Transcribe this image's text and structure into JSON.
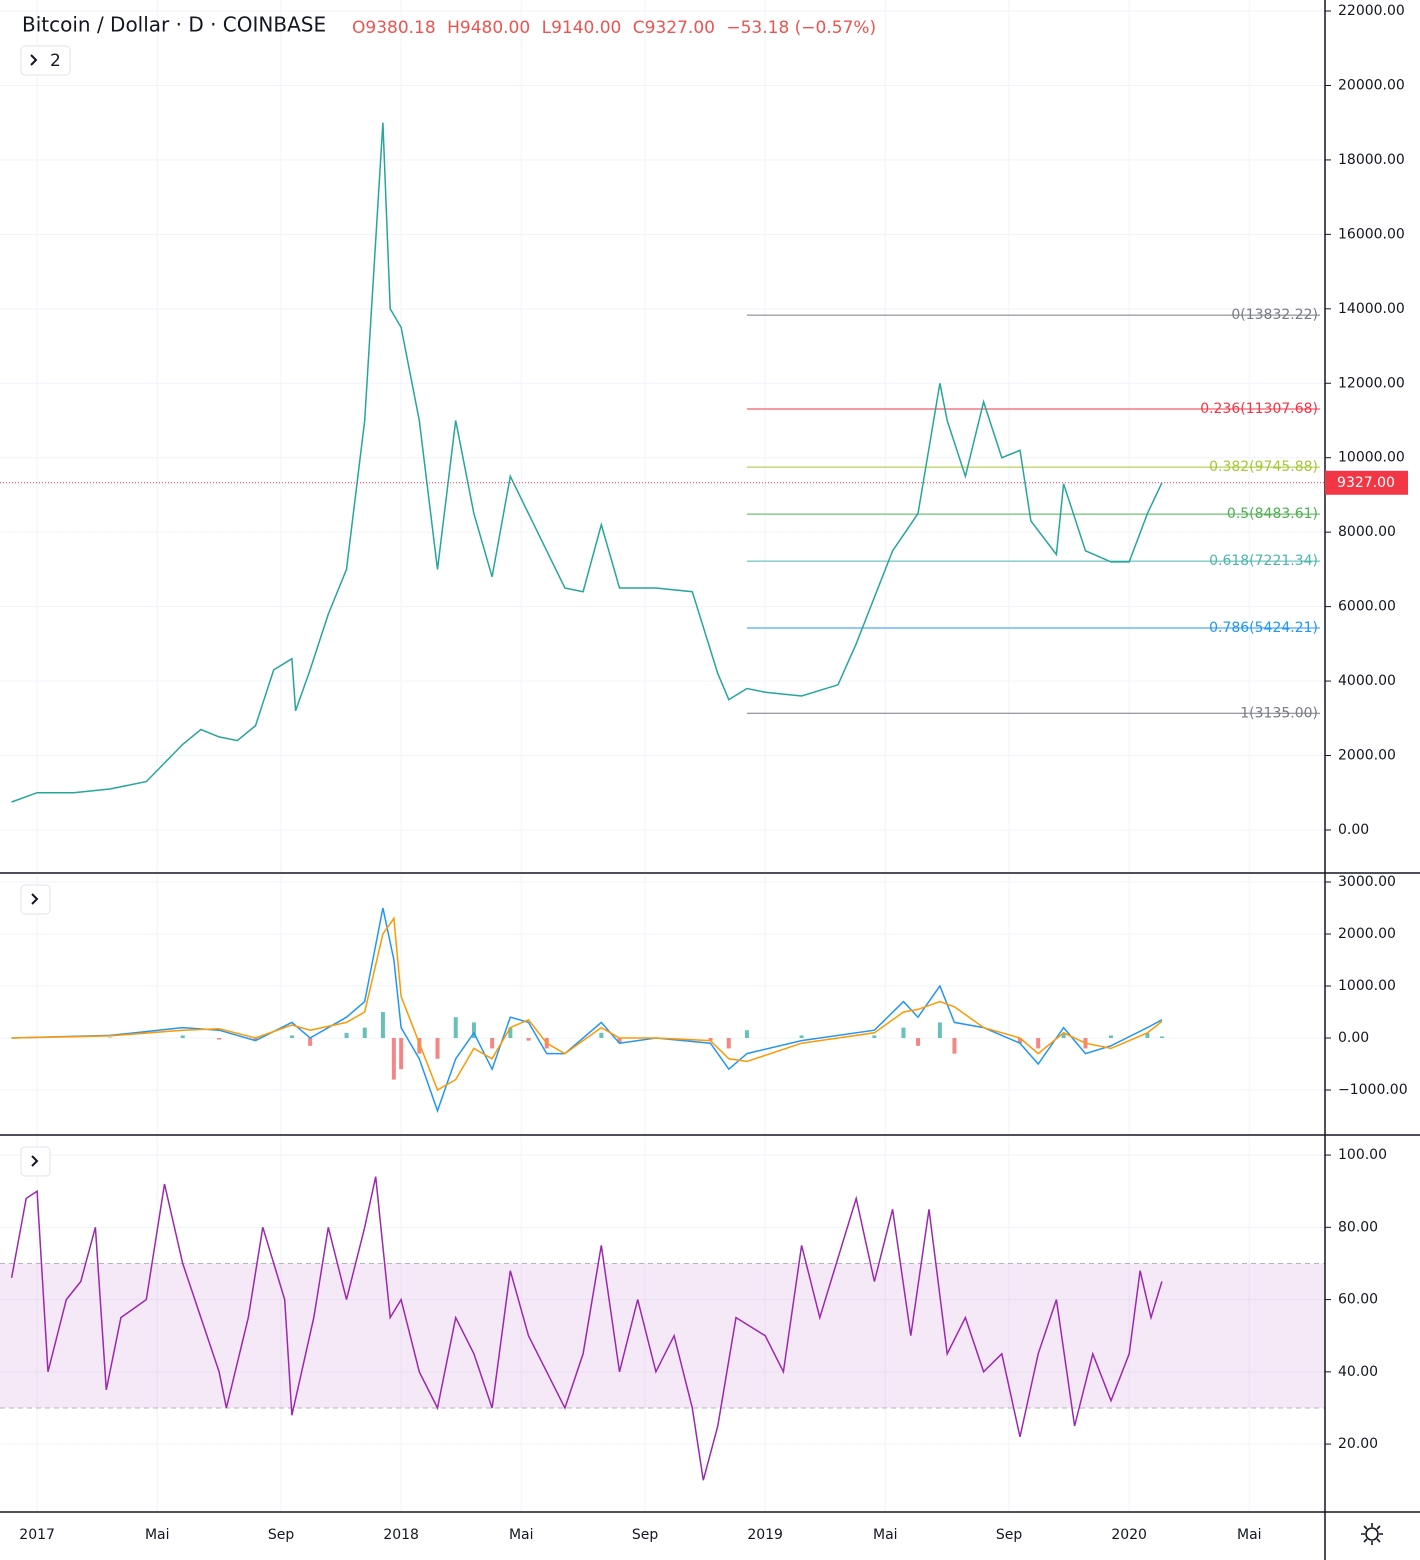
{
  "header": {
    "symbol": "Bitcoin / Dollar · D · COINBASE",
    "open": "O9380.18",
    "high": "H9480.00",
    "low": "L9140.00",
    "close": "C9327.00",
    "change": "−53.18 (−0.57%)"
  },
  "ui": {
    "indicator_count": "2"
  },
  "chart_data": [
    {
      "type": "line",
      "xlim": [
        2016.898,
        2020.538
      ],
      "ylim": [
        -1156,
        22296
      ],
      "yticks": [
        {
          "value": 0,
          "label": "0.00"
        },
        {
          "value": 2000,
          "label": "2000.00"
        },
        {
          "value": 4000,
          "label": "4000.00"
        },
        {
          "value": 6000,
          "label": "6000.00"
        },
        {
          "value": 8000,
          "label": "8000.00"
        },
        {
          "value": 10000,
          "label": "10000.00"
        },
        {
          "value": 12000,
          "label": "12000.00"
        },
        {
          "value": 14000,
          "label": "14000.00"
        },
        {
          "value": 16000,
          "label": "16000.00"
        },
        {
          "value": 18000,
          "label": "18000.00"
        },
        {
          "value": 20000,
          "label": "20000.00"
        },
        {
          "value": 22000,
          "label": "22000.00"
        }
      ],
      "x": [
        2016.93,
        2017.0,
        2017.1,
        2017.2,
        2017.3,
        2017.4,
        2017.45,
        2017.5,
        2017.55,
        2017.6,
        2017.65,
        2017.7,
        2017.71,
        2017.75,
        2017.8,
        2017.85,
        2017.9,
        2017.95,
        2017.97,
        2018.0,
        2018.05,
        2018.1,
        2018.15,
        2018.2,
        2018.25,
        2018.3,
        2018.35,
        2018.4,
        2018.45,
        2018.5,
        2018.55,
        2018.6,
        2018.7,
        2018.8,
        2018.87,
        2018.9,
        2018.95,
        2019.0,
        2019.1,
        2019.2,
        2019.25,
        2019.35,
        2019.42,
        2019.48,
        2019.5,
        2019.55,
        2019.6,
        2019.65,
        2019.7,
        2019.73,
        2019.8,
        2019.82,
        2019.88,
        2019.95,
        2020.0,
        2020.05,
        2020.09
      ],
      "series": [
        {
          "color": "#26a69a",
          "values": [
            750,
            1000,
            1000,
            1100,
            1300,
            2300,
            2700,
            2500,
            2400,
            2800,
            4300,
            4600,
            3200,
            4300,
            5800,
            7000,
            11000,
            19000,
            14000,
            13500,
            11000,
            7000,
            11000,
            8500,
            6800,
            9500,
            8500,
            7500,
            6500,
            6400,
            8200,
            6500,
            6500,
            6400,
            4200,
            3500,
            3800,
            3700,
            3600,
            3900,
            5000,
            7500,
            8500,
            12000,
            11000,
            9500,
            11500,
            10000,
            10200,
            8300,
            7400,
            9300,
            7500,
            7200,
            7200,
            8500,
            9327
          ]
        }
      ],
      "last_price": {
        "value": 9327,
        "label": "9327.00",
        "color": "#f23645"
      },
      "fib": {
        "x_start": 2018.95,
        "values": [
          13832.22,
          11307.68,
          9745.88,
          8483.61,
          7221.34,
          5424.21,
          3135.0
        ],
        "labels": [
          "0(13832.22)",
          "0.236(11307.68)",
          "0.382(9745.88)",
          "0.5(8483.61)",
          "0.618(7221.34)",
          "0.786(5424.21)",
          "1(3135.00)"
        ],
        "colors": [
          "#787b86",
          "#f23645",
          "#a5c837",
          "#4caf50",
          "#4db6ac",
          "#2196f3",
          "#787b86"
        ]
      }
    },
    {
      "type": "line",
      "xlim": [
        2016.898,
        2020.538
      ],
      "ylim": [
        -1865,
        3135
      ],
      "yticks": [
        {
          "value": -1000,
          "label": "−1000.00"
        },
        {
          "value": 0,
          "label": "0.00"
        },
        {
          "value": 1000,
          "label": "1000.00"
        },
        {
          "value": 2000,
          "label": "2000.00"
        },
        {
          "value": 3000,
          "label": "3000.00"
        }
      ],
      "x": [
        2016.93,
        2017.2,
        2017.4,
        2017.5,
        2017.6,
        2017.7,
        2017.75,
        2017.85,
        2017.9,
        2017.95,
        2017.98,
        2018.0,
        2018.05,
        2018.1,
        2018.15,
        2018.2,
        2018.25,
        2018.3,
        2018.35,
        2018.4,
        2018.45,
        2018.55,
        2018.6,
        2018.7,
        2018.85,
        2018.9,
        2018.95,
        2019.1,
        2019.3,
        2019.38,
        2019.42,
        2019.48,
        2019.52,
        2019.6,
        2019.7,
        2019.75,
        2019.82,
        2019.88,
        2019.95,
        2020.05,
        2020.09
      ],
      "series": [
        {
          "color": "#2196f3",
          "values": [
            0,
            50,
            200,
            150,
            -50,
            300,
            0,
            400,
            700,
            2500,
            1500,
            200,
            -400,
            -1400,
            -400,
            100,
            -600,
            400,
            300,
            -300,
            -300,
            300,
            -100,
            0,
            -100,
            -600,
            -300,
            -50,
            150,
            700,
            400,
            1000,
            300,
            200,
            -100,
            -500,
            200,
            -300,
            -150,
            200,
            350
          ]
        },
        {
          "color": "#ff9800",
          "values": [
            0,
            40,
            150,
            180,
            0,
            250,
            150,
            300,
            500,
            2000,
            2300,
            800,
            -100,
            -1000,
            -800,
            -200,
            -400,
            200,
            350,
            -100,
            -300,
            200,
            0,
            0,
            -50,
            -400,
            -450,
            -100,
            100,
            500,
            550,
            700,
            600,
            200,
            0,
            -300,
            100,
            -100,
            -200,
            100,
            320
          ]
        }
      ],
      "histogram": {
        "color_up": "#26a69a",
        "color_down": "#ef5350",
        "values": [
          0,
          10,
          50,
          -30,
          -50,
          50,
          -150,
          100,
          200,
          500,
          -800,
          -600,
          -300,
          -400,
          400,
          300,
          -200,
          200,
          -50,
          -200,
          0,
          100,
          -100,
          0,
          -50,
          -200,
          150,
          50,
          50,
          200,
          -150,
          300,
          -300,
          0,
          -100,
          -200,
          100,
          -200,
          50,
          100,
          30
        ]
      }
    },
    {
      "type": "line",
      "xlim": [
        2016.898,
        2020.538
      ],
      "ylim": [
        1.2,
        105
      ],
      "yticks": [
        {
          "value": 20,
          "label": "20.00"
        },
        {
          "value": 40,
          "label": "40.00"
        },
        {
          "value": 60,
          "label": "60.00"
        },
        {
          "value": 80,
          "label": "80.00"
        },
        {
          "value": 100,
          "label": "100.00"
        }
      ],
      "xticks": [
        {
          "value": 2017,
          "label": "2017"
        },
        {
          "value": 2017.33,
          "label": "Mai"
        },
        {
          "value": 2017.67,
          "label": "Sep"
        },
        {
          "value": 2018,
          "label": "2018"
        },
        {
          "value": 2018.33,
          "label": "Mai"
        },
        {
          "value": 2018.67,
          "label": "Sep"
        },
        {
          "value": 2019,
          "label": "2019"
        },
        {
          "value": 2019.33,
          "label": "Mai"
        },
        {
          "value": 2019.67,
          "label": "Sep"
        },
        {
          "value": 2020,
          "label": "2020"
        },
        {
          "value": 2020.33,
          "label": "Mai"
        }
      ],
      "bands": {
        "upper": 70,
        "lower": 30,
        "color": "#9c27b0"
      },
      "x": [
        2016.93,
        2016.97,
        2017.0,
        2017.03,
        2017.08,
        2017.12,
        2017.16,
        2017.19,
        2017.23,
        2017.3,
        2017.35,
        2017.4,
        2017.45,
        2017.5,
        2017.52,
        2017.58,
        2017.62,
        2017.68,
        2017.7,
        2017.76,
        2017.8,
        2017.85,
        2017.9,
        2017.93,
        2017.97,
        2018.0,
        2018.05,
        2018.1,
        2018.15,
        2018.2,
        2018.25,
        2018.3,
        2018.35,
        2018.4,
        2018.45,
        2018.5,
        2018.55,
        2018.6,
        2018.65,
        2018.7,
        2018.75,
        2018.8,
        2018.83,
        2018.87,
        2018.92,
        2019.0,
        2019.05,
        2019.1,
        2019.15,
        2019.25,
        2019.3,
        2019.35,
        2019.4,
        2019.45,
        2019.5,
        2019.55,
        2019.6,
        2019.65,
        2019.7,
        2019.75,
        2019.8,
        2019.85,
        2019.9,
        2019.95,
        2020.0,
        2020.03,
        2020.06,
        2020.09
      ],
      "series": [
        {
          "color": "#9c27b0",
          "values": [
            66,
            88,
            90,
            40,
            60,
            65,
            80,
            35,
            55,
            60,
            92,
            70,
            55,
            40,
            30,
            55,
            80,
            60,
            28,
            55,
            80,
            60,
            80,
            94,
            55,
            60,
            40,
            30,
            55,
            45,
            30,
            68,
            50,
            40,
            30,
            45,
            75,
            40,
            60,
            40,
            50,
            30,
            10,
            25,
            55,
            50,
            40,
            75,
            55,
            88,
            65,
            85,
            50,
            85,
            45,
            55,
            40,
            45,
            22,
            45,
            60,
            25,
            45,
            32,
            45,
            68,
            55,
            65
          ]
        }
      ]
    }
  ]
}
